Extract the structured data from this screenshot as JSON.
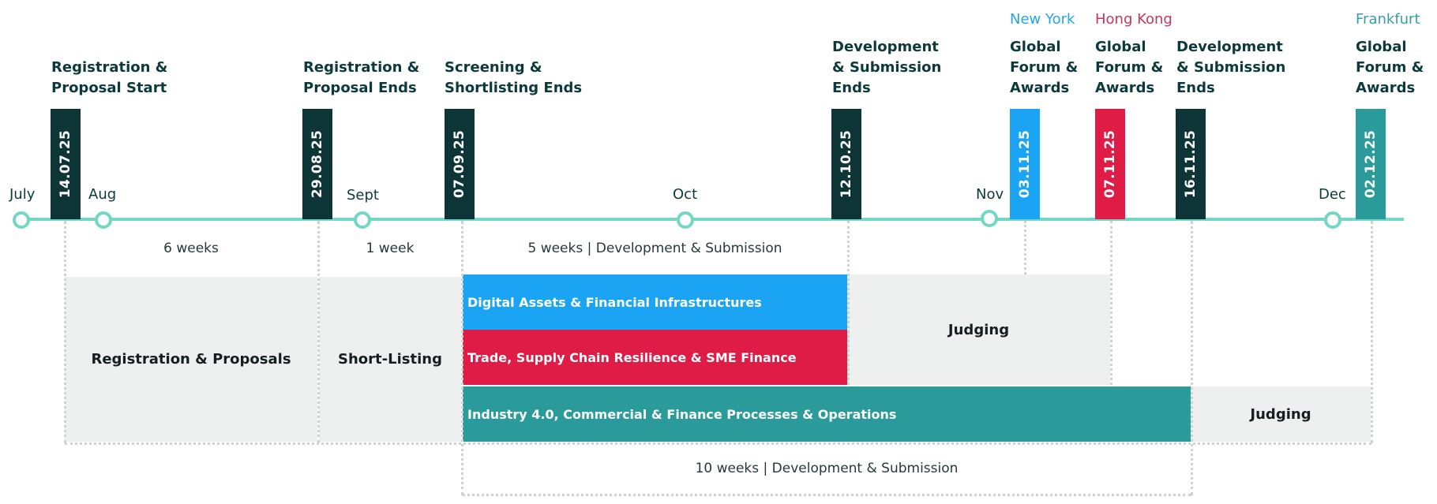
{
  "months": [
    "July",
    "Aug",
    "Sept",
    "Oct",
    "Nov",
    "Dec"
  ],
  "milestones": [
    {
      "title": [
        "Registration &",
        "Proposal Start"
      ],
      "date": "14.07.25",
      "color": "#0d3436"
    },
    {
      "title": [
        "Registration &",
        "Proposal Ends"
      ],
      "date": "29.08.25",
      "color": "#0d3436"
    },
    {
      "title": [
        "Screening &",
        "Shortlisting Ends"
      ],
      "date": "07.09.25",
      "color": "#0d3436"
    },
    {
      "title": [
        "Development",
        "& Submission",
        "Ends"
      ],
      "date": "12.10.25",
      "color": "#0d3436"
    },
    {
      "city": "New York",
      "title": [
        "Global",
        "Forum &",
        "Awards"
      ],
      "date": "03.11.25",
      "color": "#1ca4f4"
    },
    {
      "city": "Hong Kong",
      "title": [
        "Global",
        "Forum &",
        "Awards"
      ],
      "date": "07.11.25",
      "color": "#de1c45"
    },
    {
      "title": [
        "Development",
        "& Submission",
        "Ends"
      ],
      "date": "16.11.25",
      "color": "#0d3436"
    },
    {
      "city": "Frankfurt",
      "title": [
        "Global",
        "Forum &",
        "Awards"
      ],
      "date": "02.12.25",
      "color": "#2a9a9b"
    }
  ],
  "city_colors": {
    "New York": "#2aa6dd",
    "Hong Kong": "#c0395f",
    "Frankfurt": "#3a9ea0"
  },
  "durations": {
    "registration": "6 weeks",
    "shortlisting": "1 week",
    "development_5": "5 weeks | Development & Submission",
    "development_10": "10 weeks | Development & Submission"
  },
  "phases": {
    "registration": "Registration & Proposals",
    "shortlisting": "Short-Listing",
    "judging_1": "Judging",
    "judging_2": "Judging"
  },
  "tracks": [
    {
      "label": "Digital Assets & Financial Infrastructures",
      "color": "#1ca4f4"
    },
    {
      "label": "Trade, Supply Chain Resilience & SME Finance",
      "color": "#de1c45"
    },
    {
      "label": "Industry 4.0, Commercial & Finance Processes & Operations",
      "color": "#2a9a9b"
    }
  ]
}
